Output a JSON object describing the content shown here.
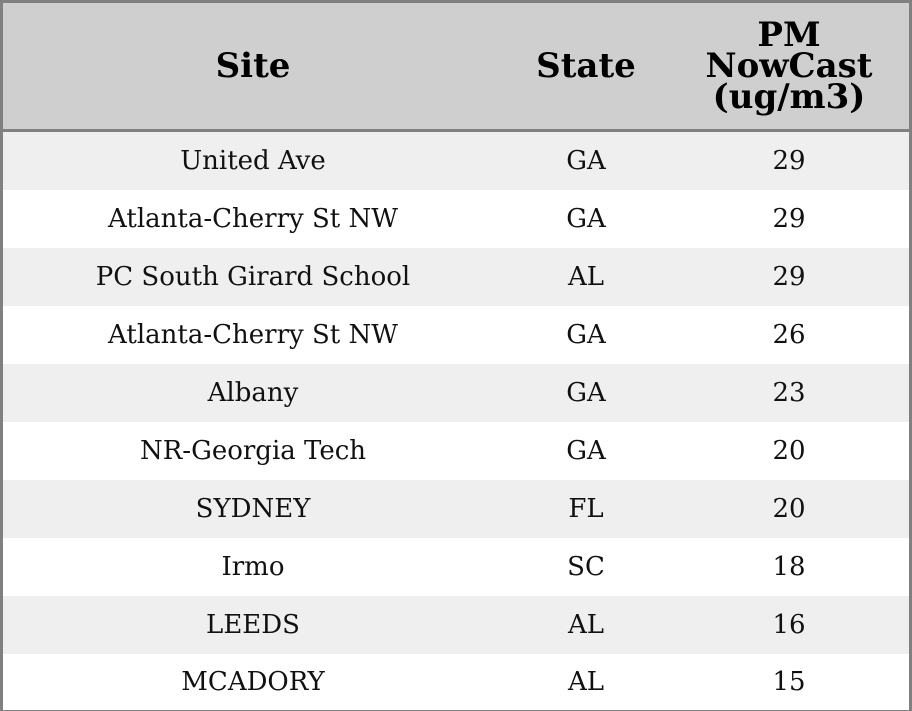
{
  "chart_data": {
    "type": "table",
    "columns": [
      "Site",
      "State",
      "PM NowCast (ug/m3)"
    ],
    "header_lines": {
      "site": [
        "Site"
      ],
      "state": [
        "State"
      ],
      "pm": [
        "PM",
        "NowCast",
        "(ug/m3)"
      ]
    },
    "rows": [
      {
        "site": "United Ave",
        "state": "GA",
        "pm": "29"
      },
      {
        "site": "Atlanta-Cherry St NW",
        "state": "GA",
        "pm": "29"
      },
      {
        "site": "PC South Girard School",
        "state": "AL",
        "pm": "29"
      },
      {
        "site": "Atlanta-Cherry St NW",
        "state": "GA",
        "pm": "26"
      },
      {
        "site": "Albany",
        "state": "GA",
        "pm": "23"
      },
      {
        "site": "NR-Georgia Tech",
        "state": "GA",
        "pm": "20"
      },
      {
        "site": "SYDNEY",
        "state": "FL",
        "pm": "20"
      },
      {
        "site": "Irmo",
        "state": "SC",
        "pm": "18"
      },
      {
        "site": "LEEDS",
        "state": "AL",
        "pm": "16"
      },
      {
        "site": "MCADORY",
        "state": "AL",
        "pm": "15"
      }
    ]
  },
  "colors": {
    "header_bg": "#cfcfcf",
    "row_alt_bg": "#efefef",
    "row_bg": "#ffffff",
    "border": "#808080"
  }
}
